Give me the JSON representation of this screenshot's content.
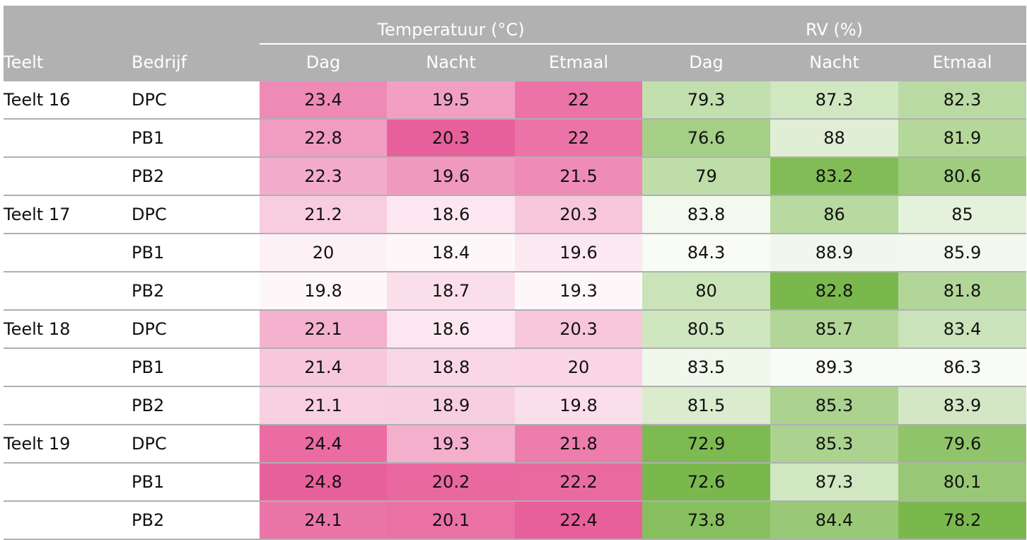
{
  "header": {
    "teelt": "Teelt",
    "bedrijf": "Bedrijf",
    "temp_group": "Temperatuur (°C)",
    "rv_group": "RV (%)",
    "temp_cols": [
      "Dag",
      "Nacht",
      "Etmaal"
    ],
    "rv_cols": [
      "Dag",
      "Nacht",
      "Etmaal"
    ]
  },
  "colors": {
    "header_bg": "#b1b1b1",
    "pink_scale": [
      "#ffffff",
      "#e8609b"
    ],
    "green_scale": [
      "#ffffff",
      "#7ab84d"
    ]
  },
  "rows": [
    {
      "teelt": "Teelt 16",
      "bedrijf": "DPC",
      "values": [
        "23.4",
        "19.5",
        "22",
        "79.3",
        "87.3",
        "82.3"
      ]
    },
    {
      "teelt": "",
      "bedrijf": "PB1",
      "values": [
        "22.8",
        "20.3",
        "22",
        "76.6",
        "88",
        "81.9"
      ]
    },
    {
      "teelt": "",
      "bedrijf": "PB2",
      "values": [
        "22.3",
        "19.6",
        "21.5",
        "79",
        "83.2",
        "80.6"
      ]
    },
    {
      "teelt": "Teelt 17",
      "bedrijf": "DPC",
      "values": [
        "21.2",
        "18.6",
        "20.3",
        "83.8",
        "86",
        "85"
      ]
    },
    {
      "teelt": "",
      "bedrijf": "PB1",
      "values": [
        "20",
        "18.4",
        "19.6",
        "84.3",
        "88.9",
        "85.9"
      ]
    },
    {
      "teelt": "",
      "bedrijf": "PB2",
      "values": [
        "19.8",
        "18.7",
        "19.3",
        "80",
        "82.8",
        "81.8"
      ]
    },
    {
      "teelt": "Teelt 18",
      "bedrijf": "DPC",
      "values": [
        "22.1",
        "18.6",
        "20.3",
        "80.5",
        "85.7",
        "83.4"
      ]
    },
    {
      "teelt": "",
      "bedrijf": "PB1",
      "values": [
        "21.4",
        "18.8",
        "20",
        "83.5",
        "89.3",
        "86.3"
      ]
    },
    {
      "teelt": "",
      "bedrijf": "PB2",
      "values": [
        "21.1",
        "18.9",
        "19.8",
        "81.5",
        "85.3",
        "83.9"
      ]
    },
    {
      "teelt": "Teelt 19",
      "bedrijf": "DPC",
      "values": [
        "24.4",
        "19.3",
        "21.8",
        "72.9",
        "85.3",
        "79.6"
      ]
    },
    {
      "teelt": "",
      "bedrijf": "PB1",
      "values": [
        "24.8",
        "20.2",
        "22.2",
        "72.6",
        "87.3",
        "80.1"
      ]
    },
    {
      "teelt": "",
      "bedrijf": "PB2",
      "values": [
        "24.1",
        "20.1",
        "22.4",
        "73.8",
        "84.4",
        "78.2"
      ]
    }
  ]
}
